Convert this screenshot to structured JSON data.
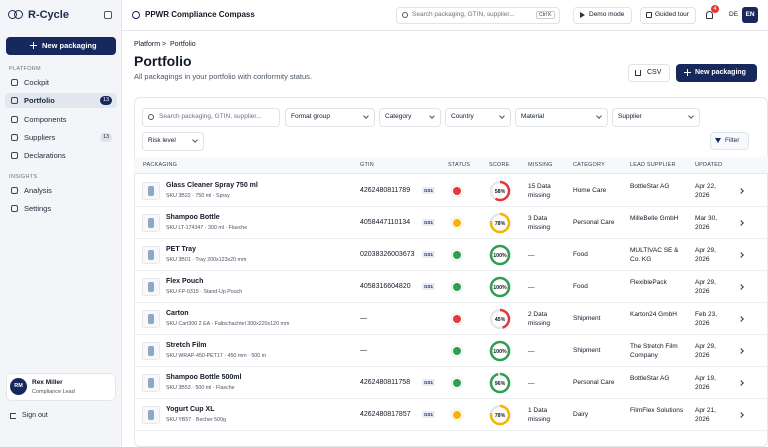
{
  "sidebar": {
    "brand": "R-Cycle",
    "new_button": "New packaging",
    "sections": [
      {
        "title": "PLATFORM",
        "items": [
          {
            "label": "Cockpit"
          },
          {
            "label": "Portfolio",
            "count": 13,
            "active": true
          },
          {
            "label": "Components"
          },
          {
            "label": "Suppliers",
            "count": 13
          },
          {
            "label": "Declarations"
          }
        ]
      },
      {
        "title": "INSIGHTS",
        "items": [
          {
            "label": "Analysis"
          },
          {
            "label": "Settings"
          }
        ]
      }
    ],
    "user": {
      "initials": "RM",
      "name": "Rex Miller",
      "role": "Compliance Lead"
    },
    "sign_out": "Sign out"
  },
  "topbar": {
    "title": "PPWR Compliance Compass",
    "search_placeholder": "Search packaging, GTIN, supplier...",
    "shortcut": "Ctrl K",
    "demo": "Demo mode",
    "tour": "Guided tour",
    "notifications": 4,
    "languages": [
      "DE",
      "EN"
    ]
  },
  "page": {
    "breadcrumb": [
      "Platform",
      ">",
      "Portfolio"
    ],
    "title": "Portfolio",
    "subtitle": "All packagings in your portfolio with conformity status.",
    "csv": "CSV",
    "new_button": "New packaging"
  },
  "filters": {
    "search_placeholder": "Search packaging, GTIN, supplier...",
    "dropdowns": [
      "Format group",
      "Category",
      "Country",
      "Material",
      "Supplier",
      "Risk level"
    ],
    "filter_button": "Filter"
  },
  "table": {
    "columns": [
      "PACKAGING",
      "GTIN",
      "STATUS",
      "SCORE",
      "MISSING",
      "CATEGORY",
      "LEAD SUPPLIER",
      "UPDATED"
    ],
    "rows": [
      {
        "name": "Glass Cleaner Spray 750 ml",
        "sku": "SKU 3B22 · 750 ml · Spray",
        "gtin": "4262480811789",
        "badge": "GS1",
        "color": "#e53935",
        "score": {
          "value": 58,
          "label": "58%"
        },
        "missing": "15 Data missing",
        "category": "Home Care",
        "supplier": "BottleStar AG",
        "updated": "Apr 22, 2026"
      },
      {
        "name": "Shampoo Bottle",
        "sku": "SKU LT-174347 · 300 ml · Flasche",
        "gtin": "4058447110134",
        "badge": "GS1",
        "color": "#f4b400",
        "score": {
          "value": 78,
          "label": "78%"
        },
        "missing": "3 Data missing",
        "category": "Personal Care",
        "supplier": "MilleBelle GmbH",
        "updated": "Mar 30, 2026"
      },
      {
        "name": "PET Tray",
        "sku": "SKU 3B01 · Tray 200x123x20 mm",
        "gtin": "02038326003673",
        "badge": "GS1",
        "color": "#2e9e4f",
        "score": {
          "value": 100,
          "label": "100%"
        },
        "missing": "—",
        "category": "Food",
        "supplier": "MULTIVAC SE & Co. KG",
        "updated": "Apr 29, 2026"
      },
      {
        "name": "Flex Pouch",
        "sku": "SKU FP-0315 · Stand-Up Pouch",
        "gtin": "4058316604820",
        "badge": "GS1",
        "color": "#2e9e4f",
        "score": {
          "value": 100,
          "label": "100%"
        },
        "missing": "—",
        "category": "Food",
        "supplier": "FlexiblePack",
        "updated": "Apr 29, 2026"
      },
      {
        "name": "Carton",
        "sku": "SKU Cart300 2 EA · Faltschachtel 300x220x120 mm",
        "gtin": "—",
        "color": "#e53935",
        "score": {
          "value": 45,
          "label": "45%"
        },
        "missing": "2 Data missing",
        "category": "Shipment",
        "supplier": "Karton24 GmbH",
        "updated": "Feb 23, 2026"
      },
      {
        "name": "Stretch Film",
        "sku": "SKU WRAP-450-PET17 · 450 mm · 500 m",
        "gtin": "—",
        "color": "#2e9e4f",
        "score": {
          "value": 100,
          "label": "100%"
        },
        "missing": "—",
        "category": "Shipment",
        "supplier": "The Stretch Film Company",
        "updated": "Apr 29, 2026"
      },
      {
        "name": "Shampoo Bottle 500ml",
        "sku": "SKU 3B53 · 500 ml · Flasche",
        "gtin": "4262480811758",
        "badge": "GS1",
        "color": "#2e9e4f",
        "score": {
          "value": 96,
          "label": "96%"
        },
        "missing": "—",
        "category": "Personal Care",
        "supplier": "BottleStar AG",
        "updated": "Apr 19, 2026"
      },
      {
        "name": "Yogurt Cup XL",
        "sku": "SKU YB57 · Becher 500g",
        "gtin": "4262480817857",
        "badge": "GS1",
        "color": "#f4b400",
        "score": {
          "value": 78,
          "label": "78%"
        },
        "missing": "1 Data missing",
        "category": "Dairy",
        "supplier": "FilmFlex Solutions",
        "updated": "Apr 21, 2026"
      }
    ]
  }
}
